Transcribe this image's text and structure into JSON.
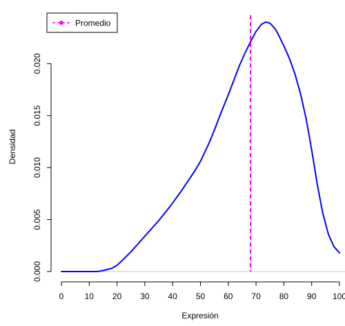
{
  "chart_data": {
    "type": "line",
    "title": "",
    "xlabel": "Expresión",
    "ylabel": "Densidad",
    "xlim": [
      0,
      100
    ],
    "ylim": [
      0,
      0.024
    ],
    "x_ticks": [
      0,
      10,
      20,
      30,
      40,
      50,
      60,
      70,
      80,
      90,
      100
    ],
    "x_tick_labels": [
      "0",
      "10",
      "20",
      "30",
      "40",
      "50",
      "60",
      "70",
      "80",
      "90",
      "100"
    ],
    "y_ticks": [
      0.0,
      0.005,
      0.01,
      0.015,
      0.02
    ],
    "y_tick_labels": [
      "0.000",
      "0.005",
      "0.010",
      "0.015",
      "0.020"
    ],
    "grid": false,
    "legend": {
      "position": "top-left",
      "entries": [
        {
          "label": "Promedio",
          "color": "#ff00ff",
          "style": "dashed-with-point"
        }
      ]
    },
    "series": [
      {
        "color": "#0000ff",
        "x": [
          0,
          5,
          10,
          13,
          15,
          18,
          20,
          22,
          25,
          28,
          30,
          33,
          35,
          38,
          40,
          43,
          45,
          48,
          50,
          53,
          55,
          57,
          60,
          62,
          64,
          66,
          68,
          70,
          72,
          73.5,
          75,
          77,
          78,
          80,
          82,
          84,
          86,
          88,
          90,
          92,
          94,
          96,
          98,
          100
        ],
        "y": [
          0.0,
          0.0,
          0.0,
          0.0,
          0.0001,
          0.0003,
          0.0006,
          0.0011,
          0.0019,
          0.0028,
          0.0034,
          0.0043,
          0.0049,
          0.0059,
          0.0066,
          0.0077,
          0.0085,
          0.0097,
          0.0106,
          0.0123,
          0.0136,
          0.015,
          0.017,
          0.0184,
          0.0198,
          0.021,
          0.0221,
          0.0231,
          0.0238,
          0.024,
          0.0239,
          0.0233,
          0.0228,
          0.0217,
          0.0205,
          0.019,
          0.0171,
          0.0147,
          0.0117,
          0.0084,
          0.0056,
          0.0036,
          0.0024,
          0.0018
        ]
      }
    ],
    "baseline": {
      "y": 0.0,
      "color": "#c8c8c8"
    },
    "mean_line": {
      "x": 68,
      "color": "#ff00ff",
      "style": "dashed"
    }
  }
}
